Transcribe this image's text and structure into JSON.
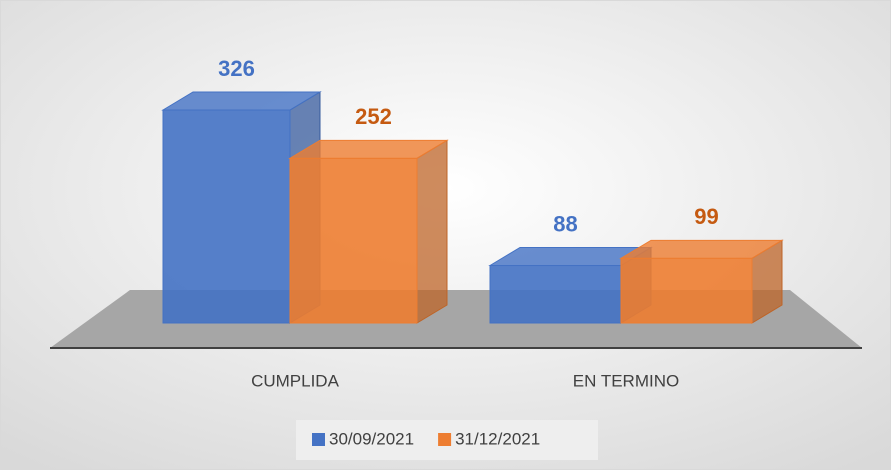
{
  "chart_data": {
    "type": "bar3d",
    "categories": [
      "CUMPLIDA",
      "EN TERMINO"
    ],
    "series": [
      {
        "name": "30/09/2021",
        "color": "#4472c4",
        "label_color": "#4472c4",
        "values": [
          326,
          88
        ]
      },
      {
        "name": "31/12/2021",
        "color": "#ed7d31",
        "label_color": "#c55a11",
        "values": [
          252,
          99
        ]
      }
    ],
    "legend": "bottom"
  }
}
